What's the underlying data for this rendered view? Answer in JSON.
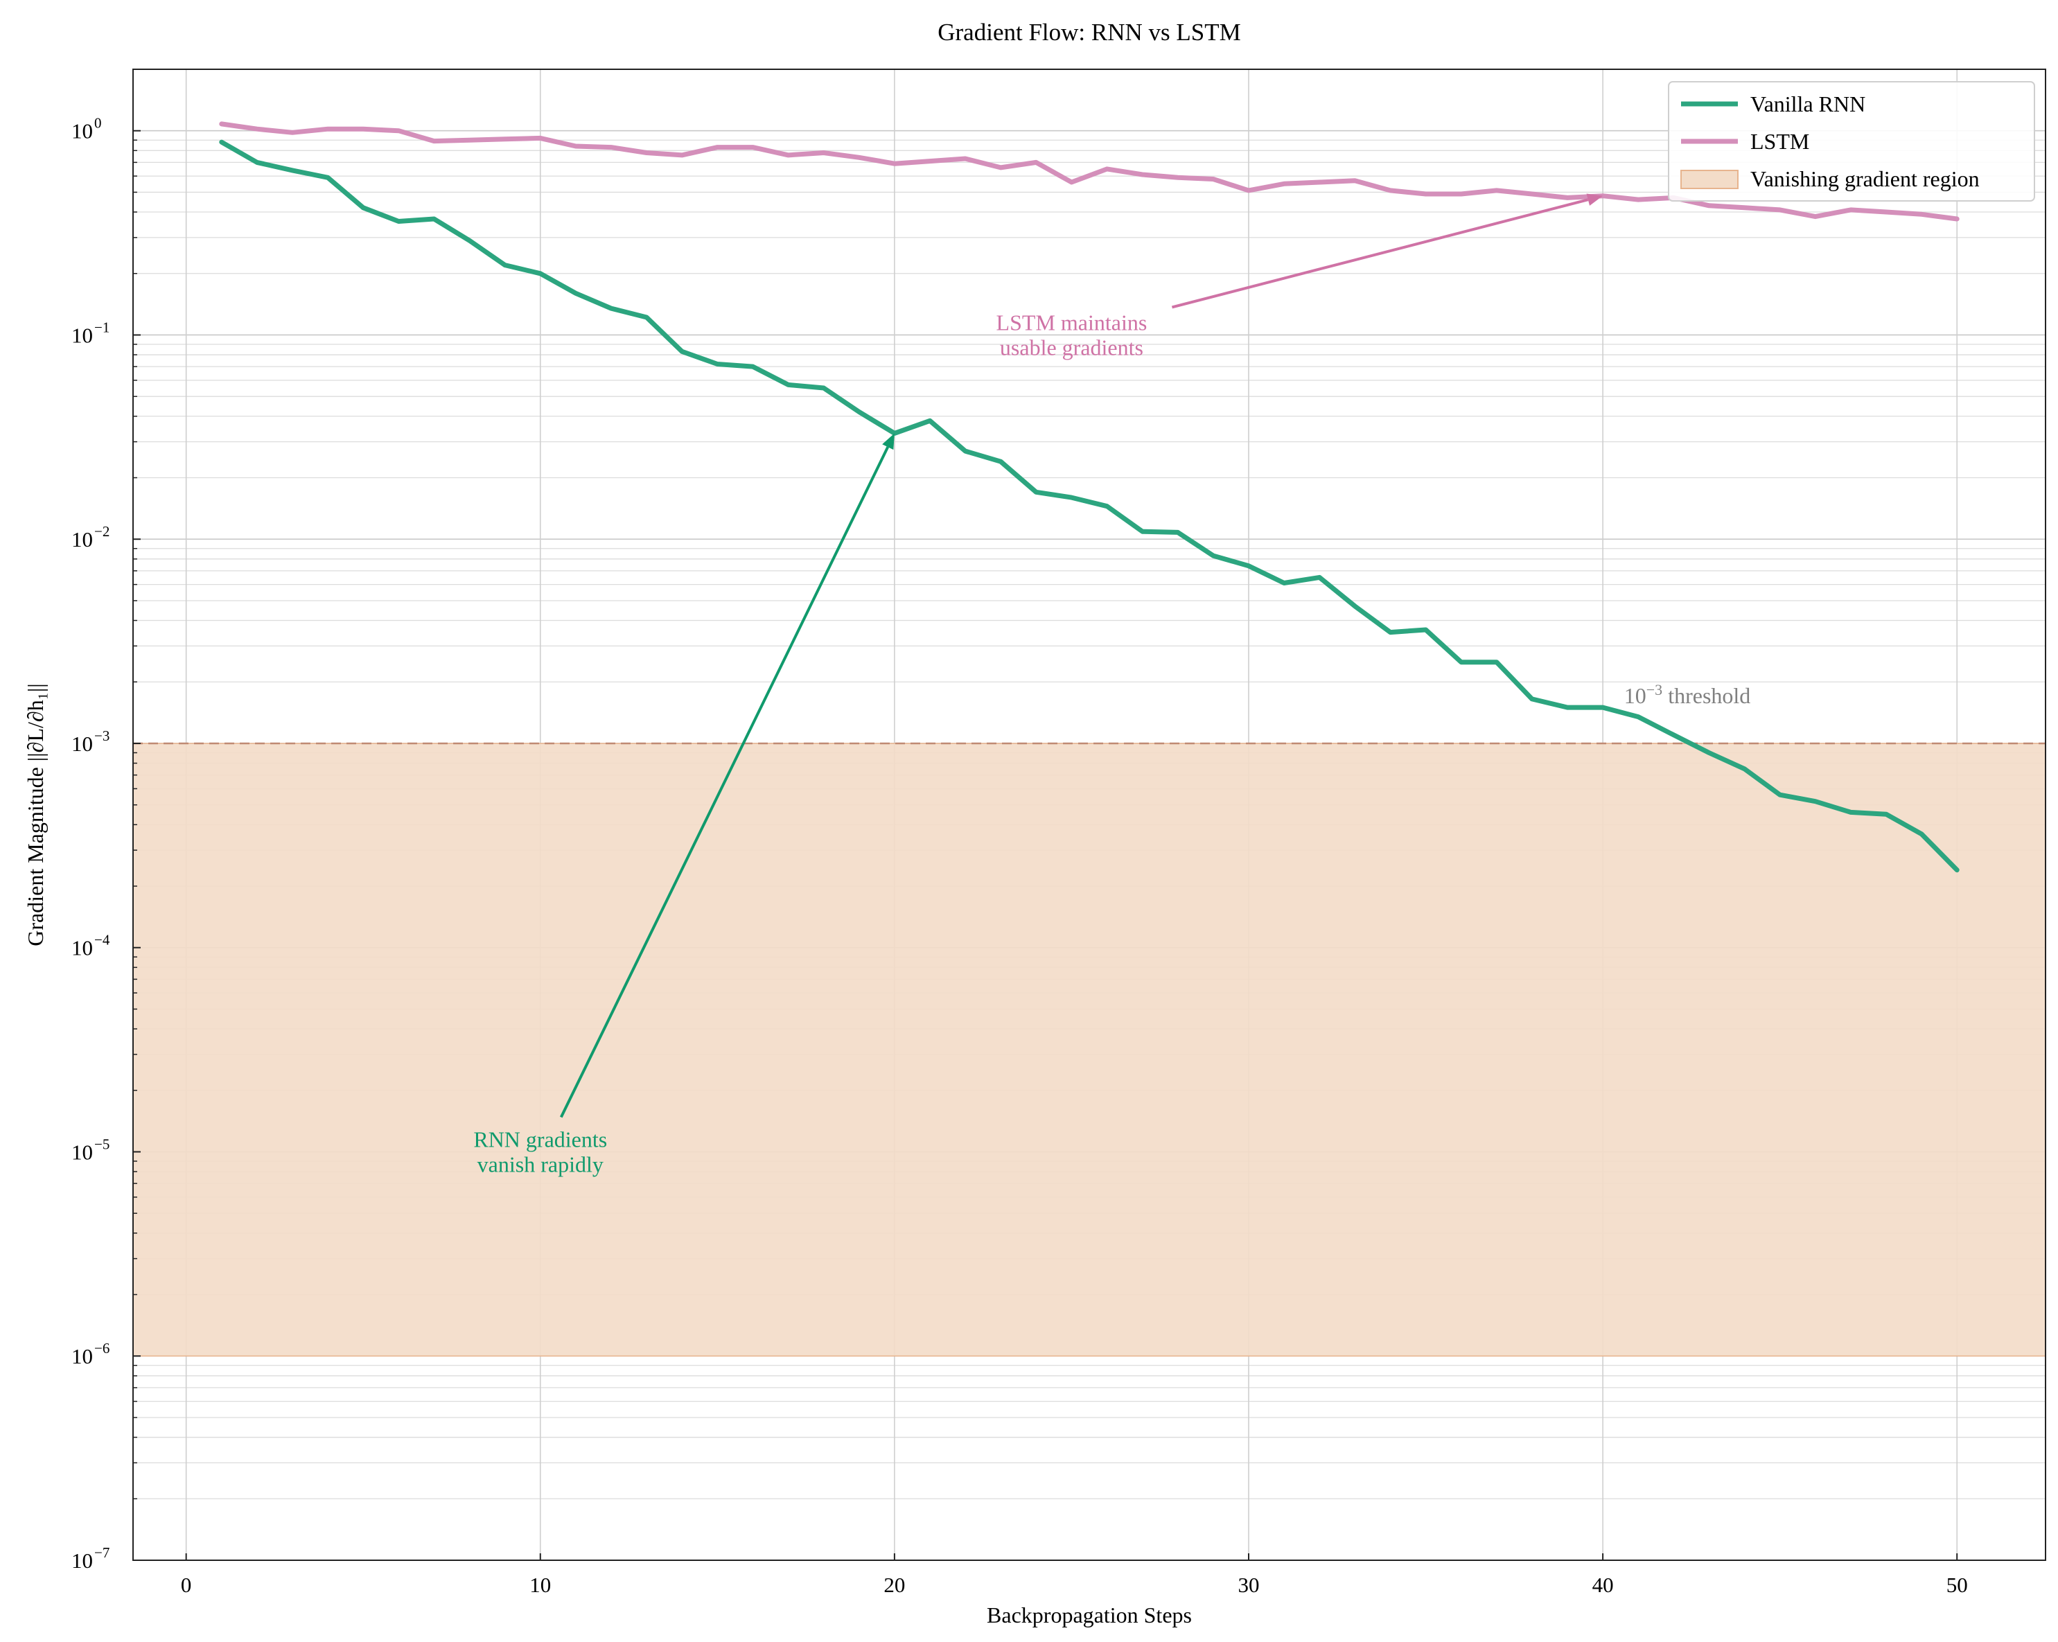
{
  "chart_data": {
    "type": "line",
    "title": "Gradient Flow: RNN vs LSTM",
    "xlabel": "Backpropagation Steps",
    "ylabel": "Gradient Magnitude ||∂L/∂h₁||",
    "xlim": [
      -1.5,
      52.5
    ],
    "ylim": [
      1e-07,
      2
    ],
    "yscale": "log",
    "grid": true,
    "legend_position": "upper right",
    "x_ticks": [
      0,
      10,
      20,
      30,
      40,
      50
    ],
    "x_tick_labels": [
      "0",
      "10",
      "20",
      "30",
      "40",
      "50"
    ],
    "y_ticks": [
      1e-07,
      1e-06,
      1e-05,
      0.0001,
      0.001,
      0.01,
      0.1,
      1
    ],
    "y_tick_labels": [
      {
        "base": "10",
        "exp": "−7"
      },
      {
        "base": "10",
        "exp": "−6"
      },
      {
        "base": "10",
        "exp": "−5"
      },
      {
        "base": "10",
        "exp": "−4"
      },
      {
        "base": "10",
        "exp": "−3"
      },
      {
        "base": "10",
        "exp": "−2"
      },
      {
        "base": "10",
        "exp": "−1"
      },
      {
        "base": "10",
        "exp": "0"
      }
    ],
    "x": [
      1,
      2,
      3,
      4,
      5,
      6,
      7,
      8,
      9,
      10,
      11,
      12,
      13,
      14,
      15,
      16,
      17,
      18,
      19,
      20,
      21,
      22,
      23,
      24,
      25,
      26,
      27,
      28,
      29,
      30,
      31,
      32,
      33,
      34,
      35,
      36,
      37,
      38,
      39,
      40,
      41,
      42,
      43,
      44,
      45,
      46,
      47,
      48,
      49,
      50
    ],
    "series": [
      {
        "name": "Vanilla RNN",
        "color": "#2ca57f",
        "values": [
          0.88,
          0.7,
          0.64,
          0.59,
          0.42,
          0.36,
          0.37,
          0.29,
          0.22,
          0.2,
          0.16,
          0.135,
          0.122,
          0.083,
          0.072,
          0.07,
          0.057,
          0.055,
          0.042,
          0.033,
          0.038,
          0.027,
          0.024,
          0.017,
          0.016,
          0.0145,
          0.0109,
          0.0108,
          0.0083,
          0.0074,
          0.0061,
          0.0065,
          0.0047,
          0.0035,
          0.0036,
          0.0025,
          0.0025,
          0.00165,
          0.0015,
          0.0015,
          0.00135,
          0.0011,
          0.0009,
          0.00075,
          0.00056,
          0.00052,
          0.00046,
          0.00045,
          0.00036,
          0.00024
        ]
      },
      {
        "name": "LSTM",
        "color": "#d48fba",
        "values": [
          1.08,
          1.02,
          0.98,
          1.02,
          1.02,
          1.0,
          0.89,
          0.9,
          0.91,
          0.92,
          0.84,
          0.83,
          0.78,
          0.76,
          0.83,
          0.83,
          0.76,
          0.78,
          0.74,
          0.69,
          0.71,
          0.73,
          0.66,
          0.7,
          0.56,
          0.65,
          0.61,
          0.59,
          0.58,
          0.51,
          0.55,
          0.56,
          0.57,
          0.51,
          0.49,
          0.49,
          0.51,
          0.49,
          0.47,
          0.48,
          0.46,
          0.47,
          0.43,
          0.42,
          0.41,
          0.38,
          0.41,
          0.4,
          0.39,
          0.37
        ]
      }
    ],
    "threshold": {
      "value": 0.001,
      "label_base": "10",
      "label_exp": "−3",
      "label_rest": " threshold",
      "color": "#c08a73"
    },
    "vanishing_region": {
      "label": "Vanishing gradient region",
      "ymin": 1e-06,
      "ymax": 0.001,
      "color": "#f3dcc8",
      "edge": "#e7b48e"
    },
    "annotations": [
      {
        "lines": [
          "RNN gradients",
          "vanish rapidly"
        ],
        "color": "#109a6c",
        "text_xy": [
          10,
          1e-05
        ],
        "arrow_to": [
          20,
          0.033
        ]
      },
      {
        "lines": [
          "LSTM maintains",
          "usable gradients"
        ],
        "color": "#cf72a5",
        "text_xy": [
          25,
          0.1
        ],
        "arrow_to": [
          40,
          0.48
        ]
      }
    ]
  }
}
